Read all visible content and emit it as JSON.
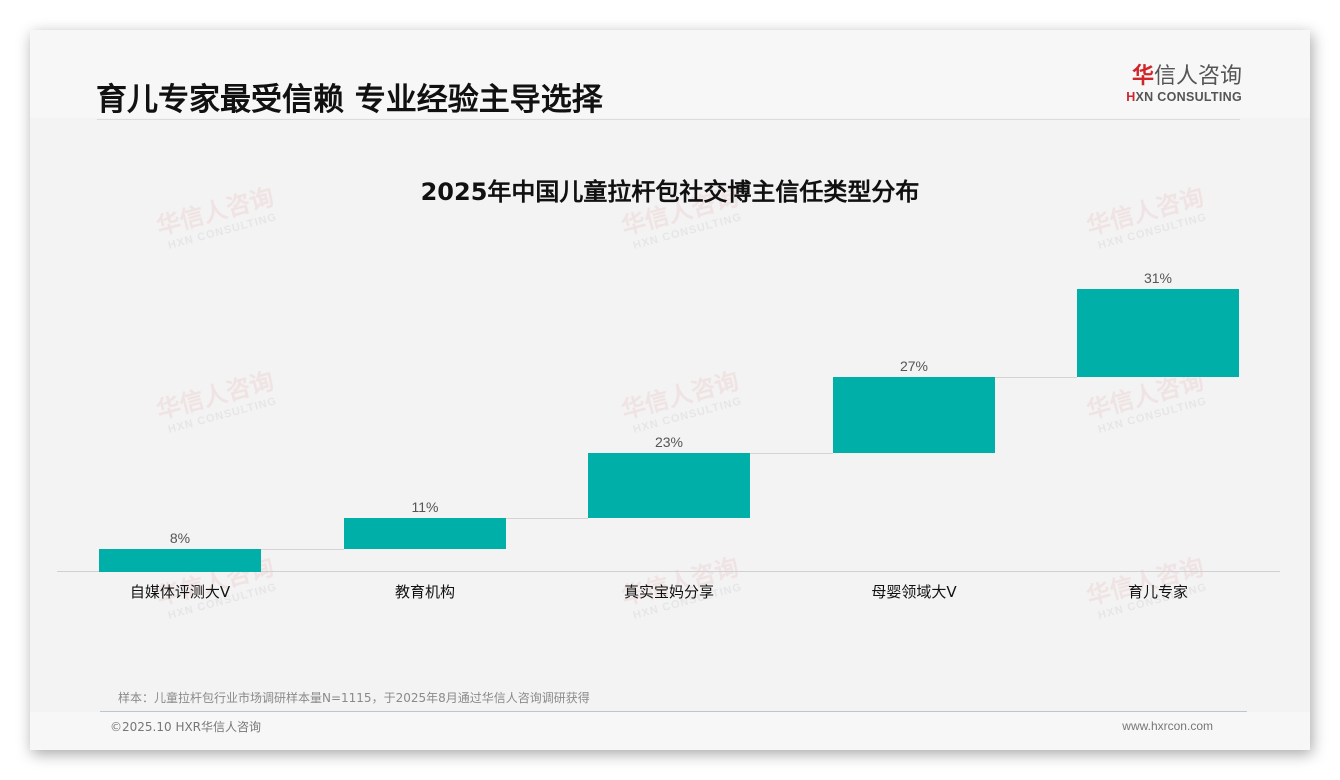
{
  "header": {
    "title": "育儿专家最受信赖 专业经验主导选择",
    "logo_cn_first": "华",
    "logo_cn_rest": "信人咨询",
    "logo_en_first": "H",
    "logo_en_rest": "XN CONSULTING"
  },
  "watermark": {
    "cn": "华信人咨询",
    "en": "HXN CONSULTING"
  },
  "colors": {
    "bar": "#00b0a8",
    "brand_red": "#d0262b",
    "background": "#f3f3f3"
  },
  "chart_data": {
    "type": "waterfall",
    "title": "2025年中国儿童拉杆包社交博主信任类型分布",
    "categories": [
      "自媒体评测大V",
      "教育机构",
      "真实宝妈分享",
      "母婴领域大V",
      "育儿专家"
    ],
    "values": [
      8,
      11,
      23,
      27,
      31
    ],
    "labels": [
      "8%",
      "11%",
      "23%",
      "27%",
      "31%"
    ],
    "cumulative": [
      8,
      19,
      42,
      69,
      100
    ],
    "unit": "%",
    "xlabel": "",
    "ylabel": "",
    "ylim": [
      0,
      100
    ],
    "grid": false,
    "legend": "none",
    "connector_lines": true
  },
  "footer": {
    "note": "样本：儿童拉杆包行业市场调研样本量N=1115，于2025年8月通过华信人咨询调研获得",
    "copyright": "©2025.10 HXR华信人咨询",
    "website": "www.hxrcon.com"
  }
}
